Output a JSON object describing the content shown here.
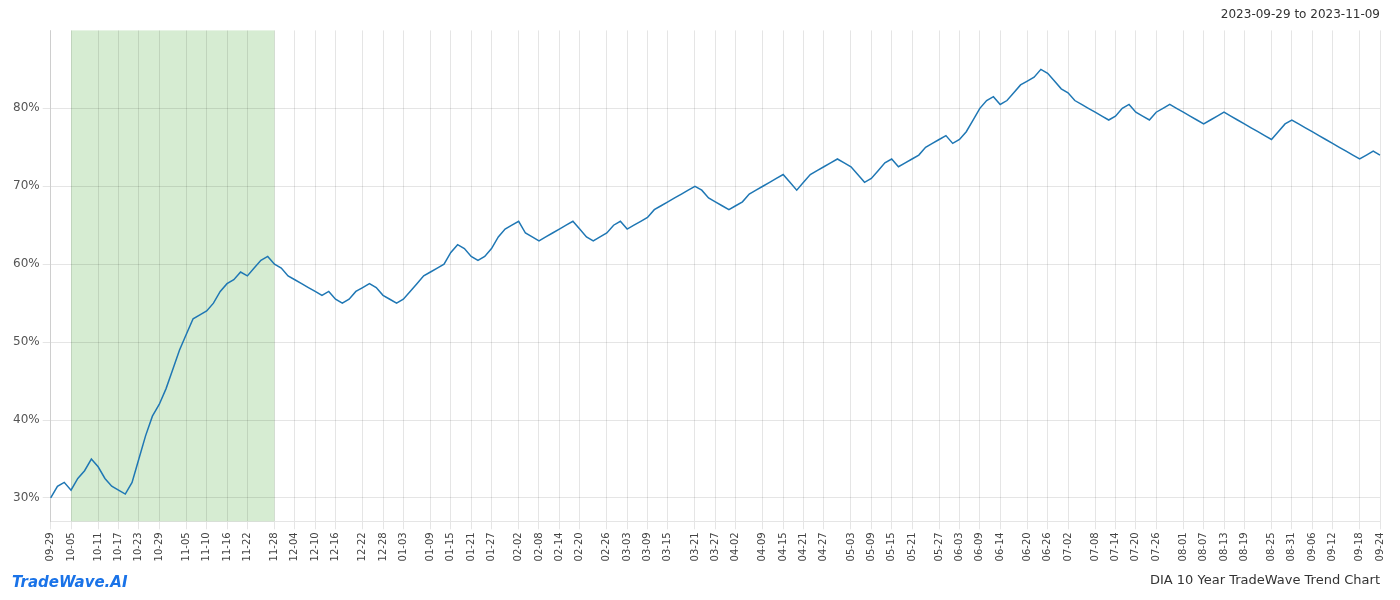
{
  "chart_data": {
    "type": "line",
    "title": "DIA 10 Year TradeWave Trend Chart",
    "subtitle": "2023-09-29 to 2023-11-09",
    "annotations": [
      {
        "text": "TradeWave.AI",
        "color": "#1a73e8"
      },
      {
        "type": "span",
        "x_start": "10-05",
        "x_end": "11-28",
        "color": "#d6ecd2"
      }
    ],
    "color": "#1f77b4",
    "grid": true,
    "ylim": [
      27,
      90
    ],
    "yticks": [
      {
        "value": 30,
        "label": "30%"
      },
      {
        "value": 40,
        "label": "40%"
      },
      {
        "value": 50,
        "label": "50%"
      },
      {
        "value": 60,
        "label": "60%"
      },
      {
        "value": 70,
        "label": "70%"
      },
      {
        "value": 80,
        "label": "80%"
      }
    ],
    "categories": [
      "09-29",
      null,
      null,
      "10-05",
      null,
      null,
      null,
      "10-11",
      null,
      null,
      "10-17",
      null,
      null,
      "10-23",
      null,
      null,
      "10-29",
      null,
      null,
      null,
      "11-05",
      null,
      null,
      "11-10",
      null,
      null,
      "11-16",
      null,
      null,
      "11-22",
      null,
      null,
      null,
      "11-28",
      null,
      null,
      "12-04",
      null,
      null,
      "12-10",
      null,
      null,
      "12-16",
      null,
      null,
      null,
      "12-22",
      null,
      null,
      "12-28",
      null,
      null,
      "01-03",
      null,
      null,
      null,
      "01-09",
      null,
      null,
      "01-15",
      null,
      null,
      "01-21",
      null,
      null,
      "01-27",
      null,
      null,
      null,
      "02-02",
      null,
      null,
      "02-08",
      null,
      null,
      "02-14",
      null,
      null,
      "02-20",
      null,
      null,
      null,
      "02-26",
      null,
      null,
      "03-03",
      null,
      null,
      "03-09",
      null,
      null,
      "03-15",
      null,
      null,
      null,
      "03-21",
      null,
      null,
      "03-27",
      null,
      null,
      "04-02",
      null,
      null,
      null,
      "04-09",
      null,
      null,
      "04-15",
      null,
      null,
      "04-21",
      null,
      null,
      "04-27",
      null,
      null,
      null,
      "05-03",
      null,
      null,
      "05-09",
      null,
      null,
      "05-15",
      null,
      null,
      "05-21",
      null,
      null,
      null,
      "05-27",
      null,
      null,
      "06-03",
      null,
      null,
      "06-09",
      null,
      null,
      "06-14",
      null,
      null,
      null,
      "06-20",
      null,
      null,
      "06-26",
      null,
      null,
      "07-02",
      null,
      null,
      null,
      "07-08",
      null,
      null,
      "07-14",
      null,
      null,
      "07-20",
      null,
      null,
      "07-26",
      null,
      null,
      null,
      "08-01",
      null,
      null,
      "08-07",
      null,
      null,
      "08-13",
      null,
      null,
      "08-19",
      null,
      null,
      null,
      "08-25",
      null,
      null,
      "08-31",
      null,
      null,
      "09-06",
      null,
      null,
      "09-12",
      null,
      null,
      null,
      "09-18",
      null,
      null,
      "09-24"
    ],
    "values": [
      30.0,
      31.5,
      32.0,
      31.0,
      32.5,
      33.5,
      35.0,
      34.0,
      32.5,
      31.5,
      31.0,
      30.5,
      32.0,
      35.0,
      38.0,
      40.5,
      42.0,
      44.0,
      46.5,
      49.0,
      51.0,
      53.0,
      53.5,
      54.0,
      55.0,
      56.5,
      57.5,
      58.0,
      59.0,
      58.5,
      59.5,
      60.5,
      61.0,
      60.0,
      59.5,
      58.5,
      58.0,
      57.5,
      57.0,
      56.5,
      56.0,
      56.5,
      55.5,
      55.0,
      55.5,
      56.5,
      57.0,
      57.5,
      57.0,
      56.0,
      55.5,
      55.0,
      55.5,
      56.5,
      57.5,
      58.5,
      59.0,
      59.5,
      60.0,
      61.5,
      62.5,
      62.0,
      61.0,
      60.5,
      61.0,
      62.0,
      63.5,
      64.5,
      65.0,
      65.5,
      64.0,
      63.5,
      63.0,
      63.5,
      64.0,
      64.5,
      65.0,
      65.5,
      64.5,
      63.5,
      63.0,
      63.5,
      64.0,
      65.0,
      65.5,
      64.5,
      65.0,
      65.5,
      66.0,
      67.0,
      67.5,
      68.0,
      68.5,
      69.0,
      69.5,
      70.0,
      69.5,
      68.5,
      68.0,
      67.5,
      67.0,
      67.5,
      68.0,
      69.0,
      69.5,
      70.0,
      70.5,
      71.0,
      71.5,
      70.5,
      69.5,
      70.5,
      71.5,
      72.0,
      72.5,
      73.0,
      73.5,
      73.0,
      72.5,
      71.5,
      70.5,
      71.0,
      72.0,
      73.0,
      73.5,
      72.5,
      73.0,
      73.5,
      74.0,
      75.0,
      75.5,
      76.0,
      76.5,
      75.5,
      76.0,
      77.0,
      78.5,
      80.0,
      81.0,
      81.5,
      80.5,
      81.0,
      82.0,
      83.0,
      83.5,
      84.0,
      85.0,
      84.5,
      83.5,
      82.5,
      82.0,
      81.0,
      80.5,
      80.0,
      79.5,
      79.0,
      78.5,
      79.0,
      80.0,
      80.5,
      79.5,
      79.0,
      78.5,
      79.5,
      80.0,
      80.5,
      80.0,
      79.5,
      79.0,
      78.5,
      78.0,
      78.5,
      79.0,
      79.5,
      79.0,
      78.5,
      78.0,
      77.5,
      77.0,
      76.5,
      76.0,
      77.0,
      78.0,
      78.5,
      78.0,
      77.5,
      77.0,
      76.5,
      76.0,
      75.5,
      75.0,
      74.5,
      74.0,
      73.5,
      74.0,
      74.5,
      74.0
    ]
  }
}
